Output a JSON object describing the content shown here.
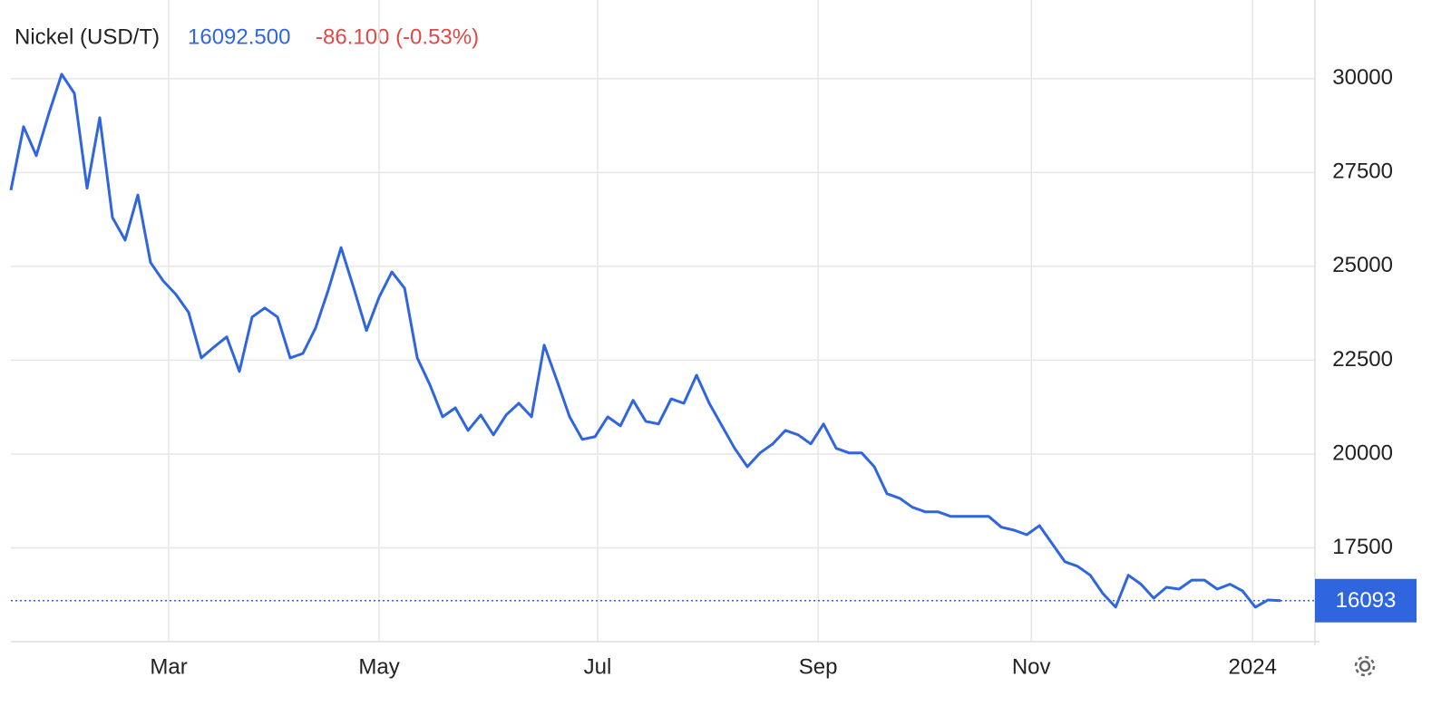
{
  "header": {
    "name": "Nickel (USD/T)",
    "price": "16092.500",
    "change": "-86.100 (-0.53%)"
  },
  "chart_data": {
    "type": "line",
    "color": "#2f66e0",
    "grid": true,
    "values": [
      27030,
      28720,
      27950,
      29080,
      30120,
      29610,
      27080,
      28960,
      26300,
      25700,
      26900,
      25100,
      24610,
      24250,
      23770,
      22560,
      22850,
      23120,
      22200,
      23650,
      23890,
      23650,
      22560,
      22680,
      23360,
      24370,
      25500,
      24420,
      23290,
      24180,
      24850,
      24420,
      22560,
      21840,
      20990,
      21230,
      20630,
      21040,
      20510,
      21040,
      21350,
      20990,
      22900,
      21960,
      20990,
      20390,
      20460,
      20990,
      20750,
      21430,
      20870,
      20800,
      21470,
      21350,
      22100,
      21350,
      20750,
      20150,
      19660,
      20030,
      20270,
      20630,
      20510,
      20270,
      20800,
      20150,
      20030,
      20030,
      19660,
      18940,
      18820,
      18580,
      18460,
      18460,
      18340,
      18340,
      18340,
      18340,
      18050,
      17970,
      17850,
      18090,
      17610,
      17130,
      17010,
      16770,
      16280,
      15920,
      16770,
      16530,
      16160,
      16450,
      16400,
      16640,
      16640,
      16400,
      16530,
      16350,
      15920,
      16110,
      16093
    ],
    "xlim": [
      0,
      102.7
    ],
    "xticks": [
      {
        "value": 12.43,
        "label": "Mar"
      },
      {
        "value": 29,
        "label": "May"
      },
      {
        "value": 46.21,
        "label": "Jul"
      },
      {
        "value": 63.57,
        "label": "Sep"
      },
      {
        "value": 80.36,
        "label": "Nov"
      },
      {
        "value": 97.79,
        "label": "2024"
      }
    ],
    "ylim": [
      15000,
      32000
    ],
    "yticks": [
      17500,
      20000,
      22500,
      25000,
      27500,
      30000
    ],
    "last_value": 16093
  }
}
